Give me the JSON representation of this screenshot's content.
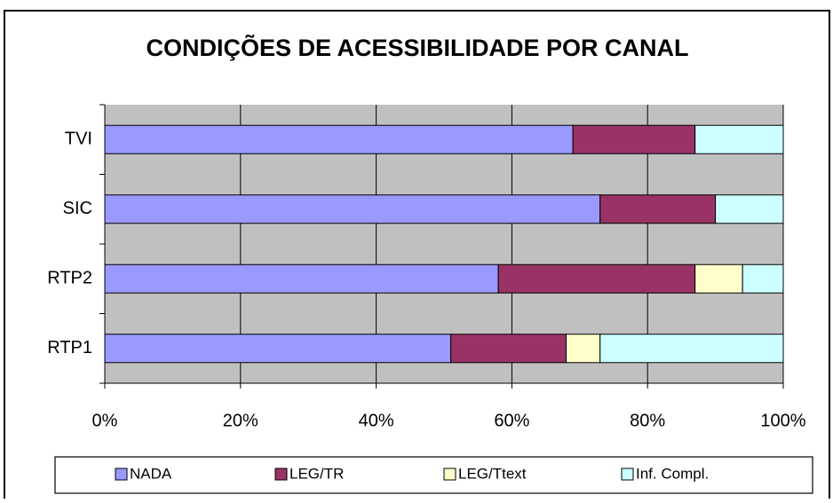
{
  "chart_data": {
    "type": "stacked-bar-horizontal",
    "title": "CONDIÇÕES DE ACESSIBILIDADE POR CANAL",
    "categories": [
      "TVI",
      "SIC",
      "RTP2",
      "RTP1"
    ],
    "series": [
      {
        "name": "NADA",
        "color": "#9999ff",
        "values": [
          69,
          73,
          58,
          51
        ]
      },
      {
        "name": "LEG/TR",
        "color": "#993366",
        "values": [
          18,
          17,
          29,
          17
        ]
      },
      {
        "name": "LEG/Ttext",
        "color": "#ffffcc",
        "values": [
          0,
          0,
          7,
          5
        ]
      },
      {
        "name": "Inf. Compl.",
        "color": "#ccffff",
        "values": [
          13,
          10,
          6,
          27
        ]
      }
    ],
    "xlim": [
      0,
      100
    ],
    "xticks": [
      {
        "value": 0,
        "label": "0%"
      },
      {
        "value": 20,
        "label": "20%"
      },
      {
        "value": 40,
        "label": "40%"
      },
      {
        "value": 60,
        "label": "60%"
      },
      {
        "value": 80,
        "label": "80%"
      },
      {
        "value": 100,
        "label": "100%"
      }
    ],
    "grid": true,
    "legend": "bottom"
  }
}
